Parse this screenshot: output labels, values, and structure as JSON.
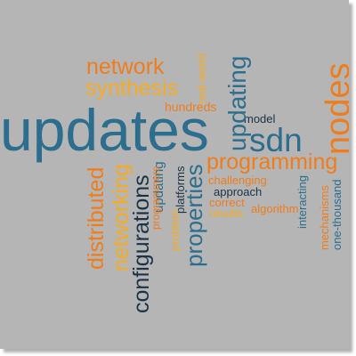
{
  "colors": {
    "background": "#b5b5b5",
    "orange": "#f07d1c",
    "gold": "#f5ab24",
    "teal": "#2d6e8e",
    "navy": "#1c3347"
  },
  "words": {
    "updates": "updates",
    "nodes": "nodes",
    "sdn": "sdn",
    "programming": "programming",
    "network": "network",
    "synthesis": "synthesis",
    "updating_h": "updating",
    "updating_v": "updating",
    "configurations": "configurations",
    "networking": "networking",
    "distributed": "distributed",
    "properties": "properties",
    "real_world": "real-world",
    "hundreds": "hundreds",
    "model": "model",
    "programmers": "programmers",
    "problem": "problem",
    "platforms": "platforms",
    "challenging": "challenging",
    "approach": "approach",
    "correct": "correct",
    "results": "results",
    "algorithm": "algorithm",
    "interacting": "interacting",
    "mechanisms": "mechanisms",
    "one_thousand": "one-thousand"
  }
}
